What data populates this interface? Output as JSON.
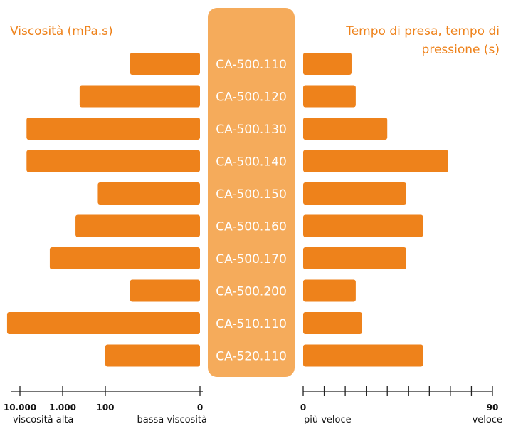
{
  "chart_data": {
    "type": "bar",
    "categories": [
      "CA-500.110",
      "CA-500.120",
      "CA-500.130",
      "CA-500.140",
      "CA-500.150",
      "CA-500.160",
      "CA-500.170",
      "CA-500.200",
      "CA-510.110",
      "CA-520.110"
    ],
    "left_panel": {
      "title": "Viscosità (mPa.s)",
      "scale": "log",
      "direction": "right-to-left",
      "ticks": [
        0,
        100,
        1000,
        10000
      ],
      "tick_labels": [
        "0",
        "100",
        "1.000",
        "10.000"
      ],
      "values": [
        30,
        400,
        7000,
        7000,
        150,
        500,
        2000,
        30,
        20000,
        100
      ],
      "end_label_high": "viscosità alta",
      "end_label_low": "bassa viscosità"
    },
    "right_panel": {
      "title": "Tempo di presa, tempo di pressione (s)",
      "scale": "linear",
      "xlim": [
        0,
        90
      ],
      "tick_labels": [
        "0",
        "90"
      ],
      "minor_ticks": [
        10,
        20,
        30,
        40,
        50,
        60,
        70,
        80
      ],
      "values": [
        23,
        25,
        40,
        69,
        49,
        57,
        49,
        25,
        28,
        57
      ],
      "end_label_low": "più veloce",
      "end_label_high": "veloce"
    },
    "colors": {
      "bar": "#ee821b",
      "center_band": "#f5ab5b",
      "center_text": "#ffffff",
      "title_text": "#ee821b",
      "axis": "#222222"
    }
  }
}
